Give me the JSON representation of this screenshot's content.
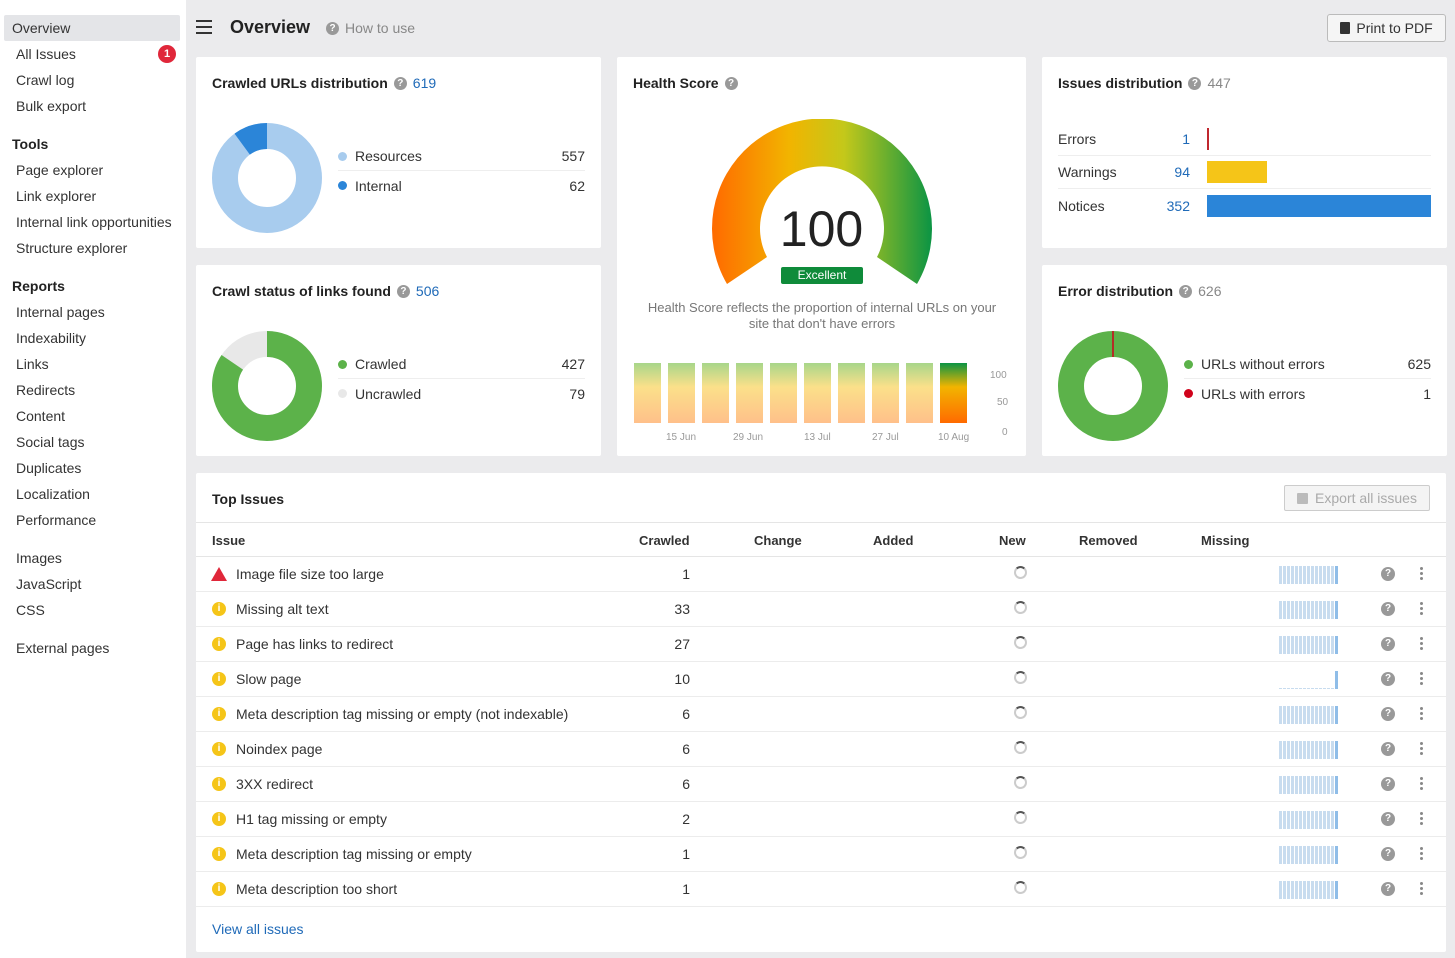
{
  "sidebar": {
    "top_items": [
      {
        "label": "Overview",
        "active": true
      },
      {
        "label": "All Issues",
        "badge": "1"
      },
      {
        "label": "Crawl log"
      },
      {
        "label": "Bulk export"
      }
    ],
    "tools_header": "Tools",
    "tools": [
      "Page explorer",
      "Link explorer",
      "Internal link opportunities",
      "Structure explorer"
    ],
    "reports_header": "Reports",
    "reports": [
      "Internal pages",
      "Indexability",
      "Links",
      "Redirects",
      "Content",
      "Social tags",
      "Duplicates",
      "Localization",
      "Performance"
    ],
    "resources": [
      "Images",
      "JavaScript",
      "CSS"
    ],
    "external": [
      "External pages"
    ]
  },
  "header": {
    "title": "Overview",
    "how_to_use": "How to use",
    "print_label": "Print to PDF"
  },
  "crawled_urls": {
    "title": "Crawled URLs distribution",
    "count": "619",
    "items": [
      {
        "label": "Resources",
        "value": "557",
        "color": "#a8ccee"
      },
      {
        "label": "Internal",
        "value": "62",
        "color": "#2b85d8"
      }
    ]
  },
  "crawl_status": {
    "title": "Crawl status of links found",
    "count": "506",
    "items": [
      {
        "label": "Crawled",
        "value": "427",
        "color": "#5cb24a"
      },
      {
        "label": "Uncrawled",
        "value": "79",
        "color": "#e8e8e8"
      }
    ]
  },
  "health": {
    "title": "Health Score",
    "score": "100",
    "badge": "Excellent",
    "description": "Health Score reflects the proportion of internal URLs on your site that don't have errors",
    "x_labels": [
      "15 Jun",
      "29 Jun",
      "13 Jul",
      "27 Jul",
      "10 Aug"
    ],
    "y_labels": [
      "100",
      "50",
      "0"
    ]
  },
  "issues_distribution": {
    "title": "Issues distribution",
    "count": "447",
    "rows": [
      {
        "label": "Errors",
        "value": "1",
        "fraction": 0.003,
        "color": "#c0282f"
      },
      {
        "label": "Warnings",
        "value": "94",
        "fraction": 0.267,
        "color": "#f5c518"
      },
      {
        "label": "Notices",
        "value": "352",
        "fraction": 1.0,
        "color": "#2b85d8"
      }
    ]
  },
  "error_distribution": {
    "title": "Error distribution",
    "count": "626",
    "items": [
      {
        "label": "URLs without errors",
        "value": "625",
        "color": "#5cb24a"
      },
      {
        "label": "URLs with errors",
        "value": "1",
        "color": "#d0021b"
      }
    ]
  },
  "top_issues": {
    "title": "Top Issues",
    "export_label": "Export all issues",
    "columns": [
      "Issue",
      "Crawled",
      "Change",
      "Added",
      "New",
      "Removed",
      "Missing"
    ],
    "rows": [
      {
        "name": "Image file size too large",
        "crawled": "1",
        "severity": "error"
      },
      {
        "name": "Missing alt text",
        "crawled": "33",
        "severity": "warning"
      },
      {
        "name": "Page has links to redirect",
        "crawled": "27",
        "severity": "warning"
      },
      {
        "name": "Slow page",
        "crawled": "10",
        "severity": "warning"
      },
      {
        "name": "Meta description tag missing or empty (not indexable)",
        "crawled": "6",
        "severity": "warning"
      },
      {
        "name": "Noindex page",
        "crawled": "6",
        "severity": "warning"
      },
      {
        "name": "3XX redirect",
        "crawled": "6",
        "severity": "warning"
      },
      {
        "name": "H1 tag missing or empty",
        "crawled": "2",
        "severity": "warning"
      },
      {
        "name": "Meta description tag missing or empty",
        "crawled": "1",
        "severity": "warning"
      },
      {
        "name": "Meta description too short",
        "crawled": "1",
        "severity": "warning"
      }
    ],
    "view_all": "View all issues"
  },
  "colors": {
    "accent": "#1f6ab8",
    "excellent": "#0f8b3a",
    "error_red": "#e0273a",
    "warning_yellow": "#f5c518"
  }
}
